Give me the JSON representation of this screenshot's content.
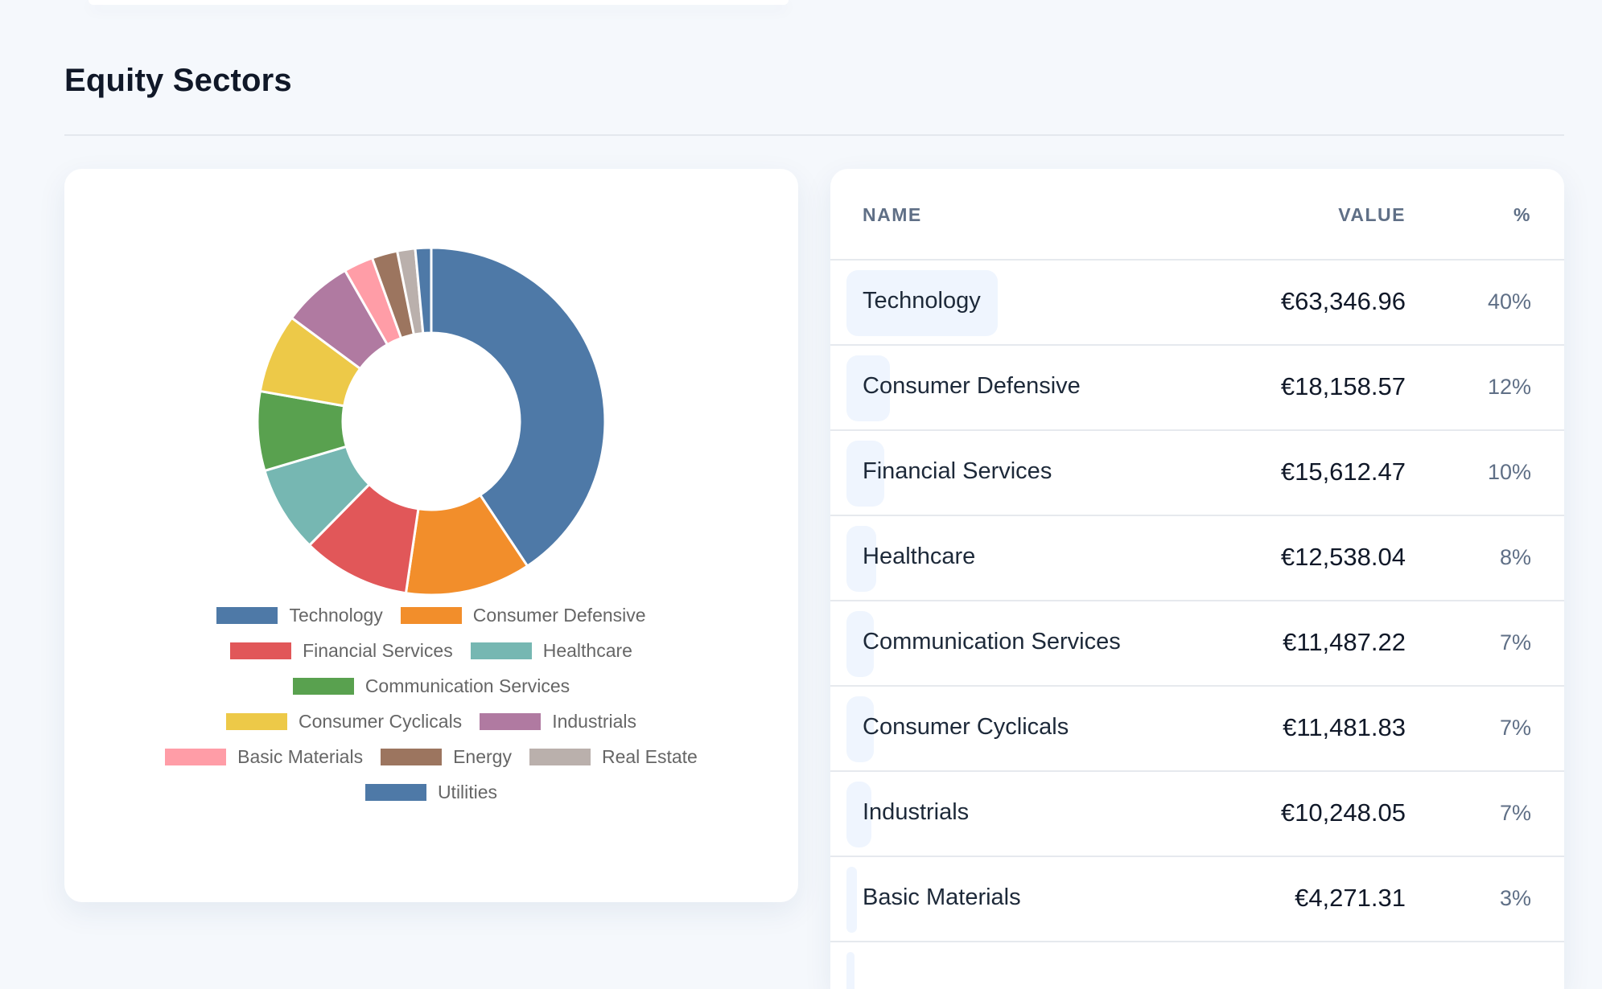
{
  "page": {
    "title": "Equity Sectors"
  },
  "table": {
    "headers": {
      "name": "NAME",
      "value": "VALUE",
      "pct": "%"
    },
    "rows": [
      {
        "name": "Technology",
        "value": "€63,346.96",
        "pct": "40%",
        "share": 0.401
      },
      {
        "name": "Consumer Defensive",
        "value": "€18,158.57",
        "pct": "12%",
        "share": 0.115
      },
      {
        "name": "Financial Services",
        "value": "€15,612.47",
        "pct": "10%",
        "share": 0.099
      },
      {
        "name": "Healthcare",
        "value": "€12,538.04",
        "pct": "8%",
        "share": 0.079
      },
      {
        "name": "Communication Services",
        "value": "€11,487.22",
        "pct": "7%",
        "share": 0.073
      },
      {
        "name": "Consumer Cyclicals",
        "value": "€11,481.83",
        "pct": "7%",
        "share": 0.073
      },
      {
        "name": "Industrials",
        "value": "€10,248.05",
        "pct": "7%",
        "share": 0.065
      },
      {
        "name": "Basic Materials",
        "value": "€4,271.31",
        "pct": "3%",
        "share": 0.027
      }
    ]
  },
  "chart_data": {
    "type": "pie",
    "variant": "doughnut",
    "legend_position": "bottom",
    "categories": [
      "Technology",
      "Consumer Defensive",
      "Financial Services",
      "Healthcare",
      "Communication Services",
      "Consumer Cyclicals",
      "Industrials",
      "Basic Materials",
      "Energy",
      "Real Estate",
      "Utilities"
    ],
    "values": [
      63346.96,
      18158.57,
      15612.47,
      12538.04,
      11487.22,
      11481.83,
      10248.05,
      4271.31,
      3700,
      2600,
      2300
    ],
    "colors": [
      "#4e79a7",
      "#f28e2b",
      "#e15759",
      "#76b7b2",
      "#59a14f",
      "#edc948",
      "#b07aa1",
      "#ff9da7",
      "#9c755f",
      "#bab0ac",
      "#4e79a7"
    ]
  }
}
